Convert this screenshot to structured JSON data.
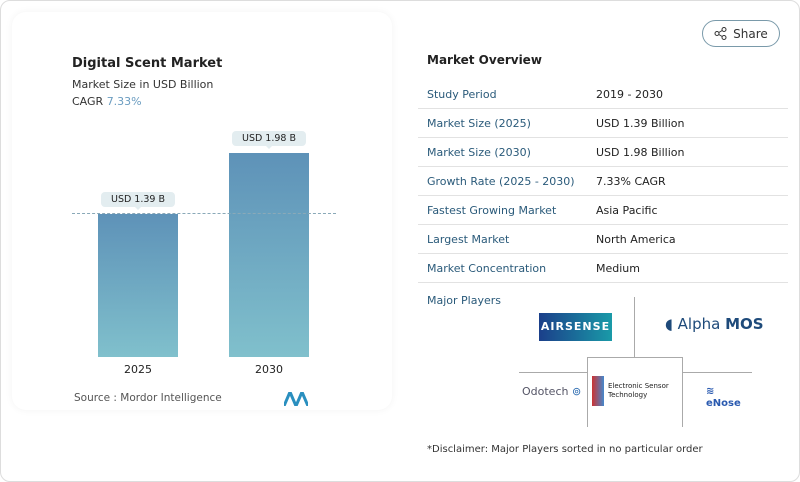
{
  "share": {
    "label": "Share",
    "icon": "share-icon"
  },
  "chart": {
    "title": "Digital Scent Market",
    "subtitle": "Market Size in USD Billion",
    "cagr_label": "CAGR",
    "cagr_value": "7.33%",
    "source": "Source :  Mordor Intelligence"
  },
  "chart_data": {
    "type": "bar",
    "categories": [
      "2025",
      "2030"
    ],
    "values": [
      1.39,
      1.98
    ],
    "data_labels": [
      "USD 1.39 B",
      "USD 1.98 B"
    ],
    "ylabel": "",
    "xlabel": "",
    "grid": false,
    "colors": [
      "#5e92b8",
      "#80c0cc"
    ]
  },
  "overview": {
    "title": "Market Overview",
    "rows": [
      {
        "k": "Study Period",
        "v": "2019 - 2030"
      },
      {
        "k": "Market Size (2025)",
        "v": "USD 1.39 Billion"
      },
      {
        "k": "Market Size (2030)",
        "v": "USD 1.98 Billion"
      },
      {
        "k": "Growth Rate (2025 - 2030)",
        "v": "7.33% CAGR"
      },
      {
        "k": "Fastest Growing Market",
        "v": "Asia Pacific"
      },
      {
        "k": "Largest Market",
        "v": "North America"
      },
      {
        "k": "Market Concentration",
        "v": "Medium"
      }
    ]
  },
  "players": {
    "title": "Major Players",
    "logos": [
      "AIRSENSE ANALYTICS",
      "Alpha MOS",
      "Odotech",
      "Electronic Sensor Technology",
      "eNose"
    ]
  },
  "disclaimer": "*Disclaimer: Major Players sorted in no particular order"
}
